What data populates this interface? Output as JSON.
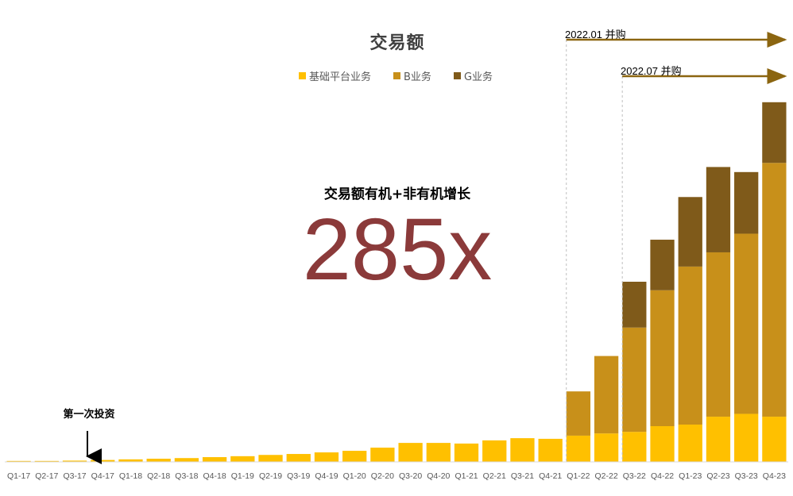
{
  "title": "交易额",
  "subtitle": "交易额有机+非有机增长",
  "headline_multiple": "285x",
  "first_investment_label": "第一次投资",
  "acquisitions": [
    {
      "label": "2022.01 并购",
      "start_category": "Q1-22"
    },
    {
      "label": "2022.07 并购",
      "start_category": "Q3-22"
    }
  ],
  "legend": [
    {
      "name": "基础平台业务",
      "color": "#ffc000"
    },
    {
      "name": "B业务",
      "color": "#c8901a"
    },
    {
      "name": "G业务",
      "color": "#7f5a1a"
    }
  ],
  "colors": {
    "accent_number": "#8b3a3a",
    "arrow": "#8b6510",
    "title": "#404040"
  },
  "chart_data": {
    "type": "bar",
    "stacked": true,
    "title": "交易额",
    "categories": [
      "Q1-17",
      "Q2-17",
      "Q3-17",
      "Q4-17",
      "Q1-18",
      "Q2-18",
      "Q3-18",
      "Q4-18",
      "Q1-19",
      "Q2-19",
      "Q3-19",
      "Q4-19",
      "Q1-20",
      "Q2-20",
      "Q3-20",
      "Q4-20",
      "Q1-21",
      "Q2-21",
      "Q3-21",
      "Q4-21",
      "Q1-22",
      "Q2-22",
      "Q3-22",
      "Q4-22",
      "Q1-23",
      "Q2-23",
      "Q3-23",
      "Q4-23"
    ],
    "series": [
      {
        "name": "基础平台业务",
        "color": "#ffc000",
        "values": [
          0.3,
          0.3,
          0.4,
          0.6,
          0.8,
          1.0,
          1.2,
          1.5,
          1.8,
          2.2,
          2.5,
          3.0,
          3.5,
          4.5,
          6.0,
          6.0,
          5.8,
          6.8,
          7.5,
          7.3,
          8.3,
          9.0,
          9.5,
          11.3,
          11.8,
          14.3,
          15.2,
          14.3
        ]
      },
      {
        "name": "B业务",
        "color": "#c8901a",
        "values": [
          0,
          0,
          0,
          0,
          0,
          0,
          0,
          0,
          0,
          0,
          0,
          0,
          0,
          0,
          0,
          0,
          0,
          0,
          0,
          0,
          14.0,
          24.5,
          33.0,
          43.0,
          50.0,
          52.0,
          57.0,
          80.3
        ]
      },
      {
        "name": "G业务",
        "color": "#7f5a1a",
        "values": [
          0,
          0,
          0,
          0,
          0,
          0,
          0,
          0,
          0,
          0,
          0,
          0,
          0,
          0,
          0,
          0,
          0,
          0,
          0,
          0,
          0,
          0,
          14.5,
          16.0,
          22.0,
          27.0,
          19.5,
          19.2
        ]
      }
    ],
    "xlabel": "",
    "ylabel": "",
    "ylim": [
      0,
      114
    ],
    "y_axis_visible": false,
    "grid": false,
    "legend_position": "top-center"
  }
}
